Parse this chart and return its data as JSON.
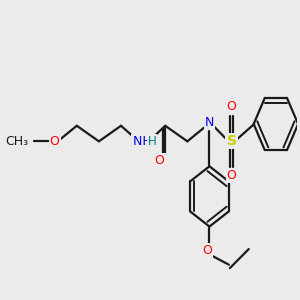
{
  "background_color": "#ebebeb",
  "bond_color": "#1a1a1a",
  "figsize": [
    3.0,
    3.0
  ],
  "dpi": 100,
  "colors": {
    "O": "#ff0000",
    "N": "#0000ee",
    "S": "#cccc00",
    "NH_H": "#008080",
    "C": "#1a1a1a"
  },
  "xlim": [
    -0.5,
    10.5
  ],
  "ylim": [
    -4.5,
    4.0
  ]
}
